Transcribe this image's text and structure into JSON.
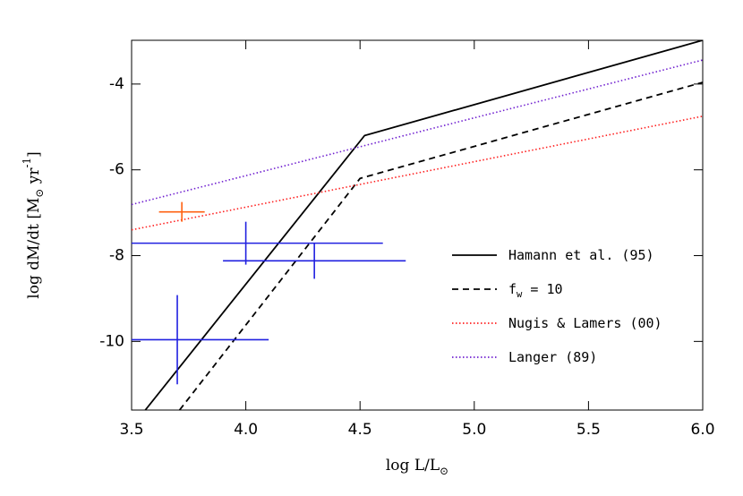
{
  "chart_data": {
    "type": "line",
    "xlabel": "log L/L_⊙",
    "ylabel": "log dM/dt [M_⊙ yr^{-1}]",
    "xlim": [
      3.5,
      6.0
    ],
    "ylim": [
      -11.6,
      -2.98
    ],
    "xticks": [
      {
        "value": 3.5,
        "label": "3.5"
      },
      {
        "value": 4.0,
        "label": "4.0"
      },
      {
        "value": 4.5,
        "label": "4.5"
      },
      {
        "value": 5.0,
        "label": "5.0"
      },
      {
        "value": 5.5,
        "label": "5.5"
      },
      {
        "value": 6.0,
        "label": "6.0"
      }
    ],
    "yticks": [
      -10,
      -8,
      -6,
      -4
    ],
    "legend": "lower-right",
    "series": [
      {
        "name": "Hamann et al. (95)",
        "color": "#000000",
        "style": "solid",
        "x": [
          3.56,
          4.52,
          6.0
        ],
        "values": [
          -11.6,
          -5.2,
          -2.98
        ]
      },
      {
        "name": "f_w = 10",
        "color": "#000000",
        "style": "dashed",
        "x": [
          3.71,
          4.5,
          6.0
        ],
        "values": [
          -11.6,
          -6.2,
          -3.96
        ]
      },
      {
        "name": "Nugis & Lamers (00)",
        "color": "#ff2020",
        "style": "dotted",
        "x": [
          3.5,
          6.0
        ],
        "values": [
          -7.4,
          -4.75
        ]
      },
      {
        "name": "Langer (89)",
        "color": "#7020d0",
        "style": "dotted",
        "x": [
          3.5,
          6.0
        ],
        "values": [
          -6.81,
          -3.44
        ]
      }
    ],
    "points": [
      {
        "color": "#2020e0",
        "x": [
          4.0,
          4.3,
          3.7
        ],
        "values": [
          -7.71,
          -8.12,
          -9.96
        ],
        "xerr": [
          0.6,
          0.4,
          0.4
        ],
        "yerr": [
          0.5,
          0.42,
          1.04
        ]
      },
      {
        "color": "#ff6010",
        "x": [
          3.72
        ],
        "values": [
          -6.98
        ],
        "xerr": [
          0.1
        ],
        "yerr": [
          0.23
        ]
      }
    ]
  }
}
